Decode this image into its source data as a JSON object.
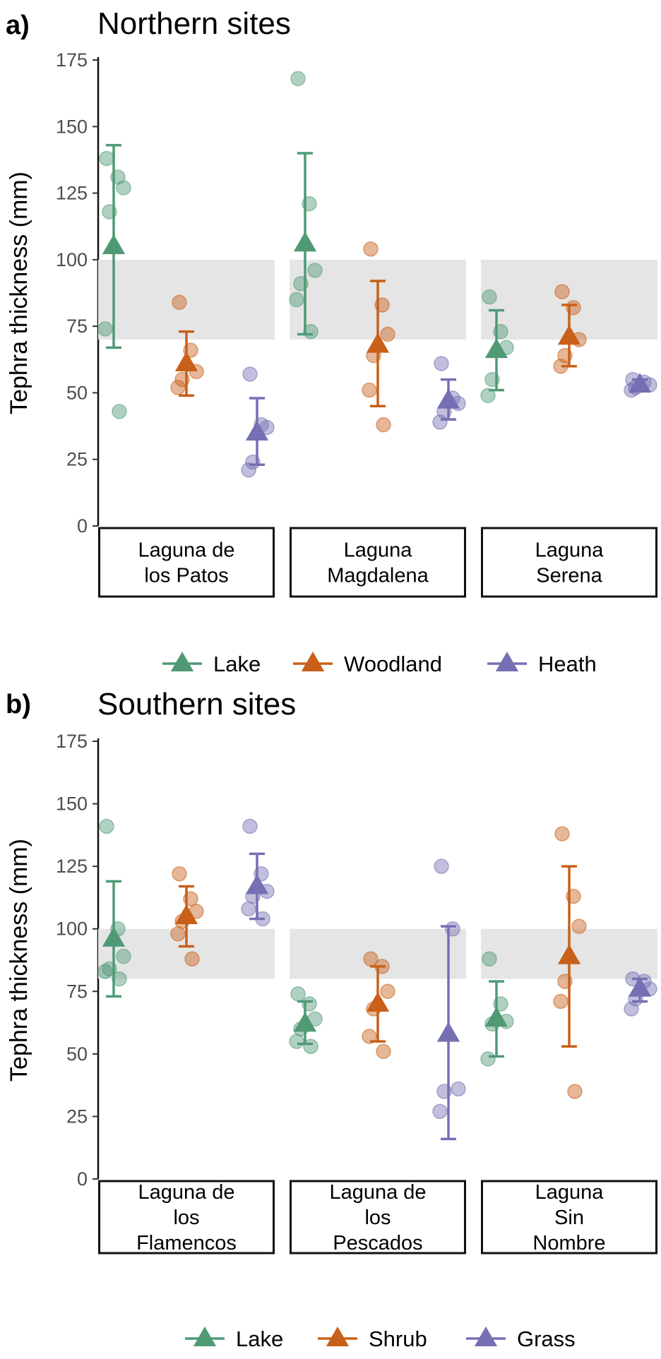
{
  "colors": {
    "lake": "#4f9a75",
    "mid": "#c8601a",
    "third": "#7570b3",
    "band": "#e5e5e5"
  },
  "chart_data": [
    {
      "type": "scatter",
      "panel_tag": "a)",
      "title": "Northern sites",
      "ylabel": "Tephra thickness (mm)",
      "ylim": [
        0,
        175
      ],
      "yticks": [
        "0",
        "25",
        "50",
        "75",
        "100",
        "125",
        "150",
        "175"
      ],
      "band": [
        70,
        100
      ],
      "legend": [
        "Lake",
        "Woodland",
        "Heath"
      ],
      "legend_position": "bottom",
      "grid": false,
      "sites": [
        {
          "label": [
            "Laguna de",
            "los Patos"
          ],
          "groups": [
            {
              "series": "Lake",
              "mean": 105,
              "lower": 67,
              "upper": 143,
              "points": [
                138,
                131,
                127,
                118,
                74,
                43
              ]
            },
            {
              "series": "Woodland",
              "mean": 61,
              "lower": 49,
              "upper": 73,
              "points": [
                84,
                66,
                58,
                55,
                52
              ]
            },
            {
              "series": "Heath",
              "mean": 35,
              "lower": 23,
              "upper": 48,
              "points": [
                57,
                38,
                37,
                24,
                21
              ]
            }
          ]
        },
        {
          "label": [
            "Laguna",
            "Magdalena"
          ],
          "groups": [
            {
              "series": "Lake",
              "mean": 106,
              "lower": 72,
              "upper": 140,
              "points": [
                168,
                121,
                96,
                91,
                85,
                73
              ]
            },
            {
              "series": "Woodland",
              "mean": 68,
              "lower": 45,
              "upper": 92,
              "points": [
                104,
                83,
                72,
                64,
                51,
                38
              ]
            },
            {
              "series": "Heath",
              "mean": 47,
              "lower": 40,
              "upper": 55,
              "points": [
                61,
                48,
                46,
                43,
                39
              ]
            }
          ]
        },
        {
          "label": [
            "Laguna",
            "Serena"
          ],
          "groups": [
            {
              "series": "Lake",
              "mean": 66,
              "lower": 51,
              "upper": 81,
              "points": [
                86,
                73,
                67,
                55,
                49
              ]
            },
            {
              "series": "Woodland",
              "mean": 71,
              "lower": 60,
              "upper": 83,
              "points": [
                88,
                82,
                70,
                64,
                60
              ]
            },
            {
              "series": "Heath",
              "mean": 53,
              "lower": 51,
              "upper": 55,
              "points": [
                55,
                54,
                53,
                52,
                51
              ]
            }
          ]
        }
      ]
    },
    {
      "type": "scatter",
      "panel_tag": "b)",
      "title": "Southern sites",
      "ylabel": "Tephra thickness (mm)",
      "ylim": [
        0,
        175
      ],
      "yticks": [
        "0",
        "25",
        "50",
        "75",
        "100",
        "125",
        "150",
        "175"
      ],
      "band": [
        80,
        100
      ],
      "legend": [
        "Lake",
        "Shrub",
        "Grass"
      ],
      "legend_position": "bottom",
      "grid": false,
      "sites": [
        {
          "label": [
            "Laguna de",
            "los",
            "Flamencos"
          ],
          "groups": [
            {
              "series": "Lake",
              "mean": 96,
              "lower": 73,
              "upper": 119,
              "points": [
                141,
                100,
                89,
                84,
                83,
                80
              ]
            },
            {
              "series": "Shrub",
              "mean": 105,
              "lower": 93,
              "upper": 117,
              "points": [
                122,
                112,
                107,
                103,
                98,
                88
              ]
            },
            {
              "series": "Grass",
              "mean": 117,
              "lower": 104,
              "upper": 130,
              "points": [
                141,
                122,
                115,
                113,
                108,
                104
              ]
            }
          ]
        },
        {
          "label": [
            "Laguna de",
            "los",
            "Pescados"
          ],
          "groups": [
            {
              "series": "Lake",
              "mean": 62,
              "lower": 54,
              "upper": 71,
              "points": [
                74,
                70,
                64,
                60,
                55,
                53
              ]
            },
            {
              "series": "Shrub",
              "mean": 70,
              "lower": 55,
              "upper": 85,
              "points": [
                88,
                85,
                75,
                68,
                57,
                51
              ]
            },
            {
              "series": "Grass",
              "mean": 58,
              "lower": 16,
              "upper": 101,
              "points": [
                125,
                100,
                36,
                35,
                27
              ]
            }
          ]
        },
        {
          "label": [
            "Laguna",
            "Sin",
            "Nombre"
          ],
          "groups": [
            {
              "series": "Lake",
              "mean": 64,
              "lower": 49,
              "upper": 79,
              "points": [
                88,
                70,
                63,
                62,
                48
              ]
            },
            {
              "series": "Shrub",
              "mean": 89,
              "lower": 53,
              "upper": 125,
              "points": [
                138,
                113,
                101,
                79,
                71,
                35
              ]
            },
            {
              "series": "Grass",
              "mean": 76,
              "lower": 71,
              "upper": 80,
              "points": [
                80,
                79,
                76,
                72,
                68
              ]
            }
          ]
        }
      ]
    }
  ]
}
